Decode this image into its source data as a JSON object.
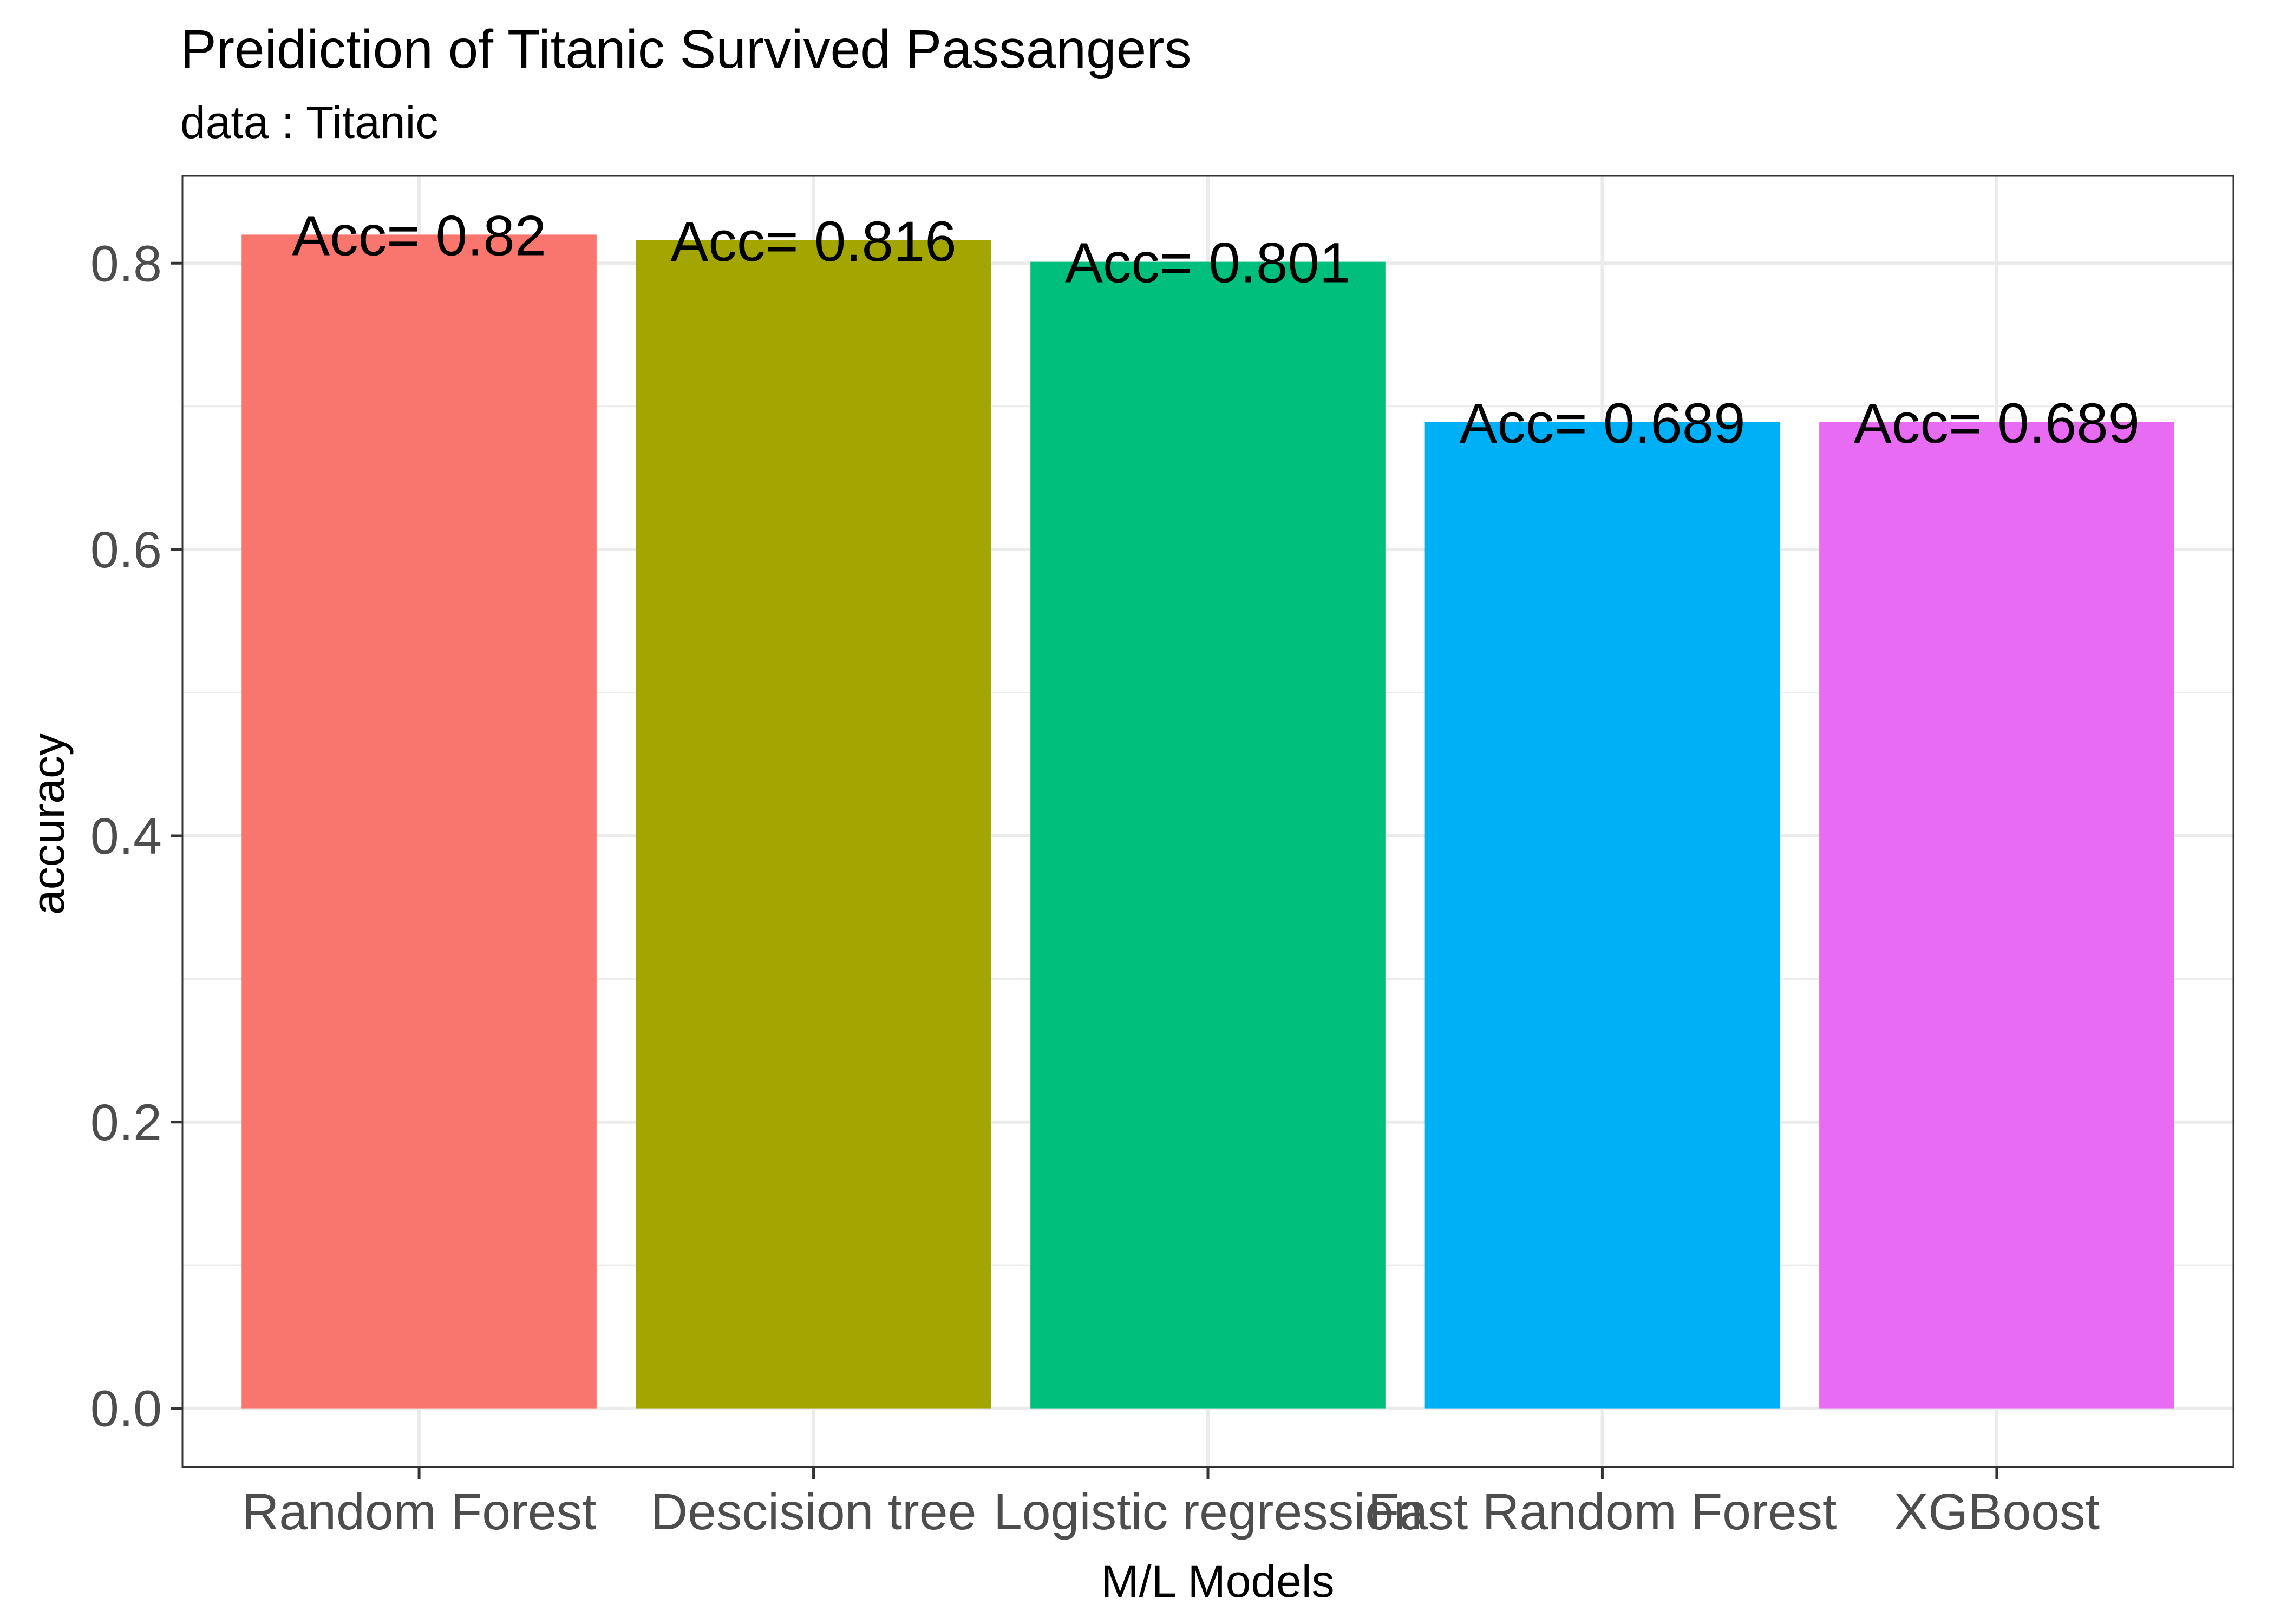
{
  "chart_data": {
    "type": "bar",
    "title": "Preidiction of Titanic Survived Passangers",
    "subtitle": "data : Titanic",
    "xlabel": "M/L Models",
    "ylabel": "accuracy",
    "categories": [
      "Random Forest",
      "Descision tree",
      "Logistic regression",
      "Fast Random Forest",
      "XGBoost"
    ],
    "values": [
      0.82,
      0.816,
      0.801,
      0.689,
      0.689
    ],
    "data_labels": [
      "Acc= 0.82",
      "Acc= 0.816",
      "Acc= 0.801",
      "Acc= 0.689",
      "Acc= 0.689"
    ],
    "colors": [
      "#F8766D",
      "#A3A500",
      "#00BF7D",
      "#00B0F6",
      "#E76BF3"
    ],
    "ylim": [
      -0.041,
      0.861
    ],
    "yticks": [
      0.0,
      0.2,
      0.4,
      0.6,
      0.8
    ],
    "ytick_labels": [
      "0.0",
      "0.2",
      "0.4",
      "0.6",
      "0.8"
    ],
    "grid": true,
    "legend": "none",
    "grid_color": "#EBEBEB",
    "panel_border_color": "#333333"
  }
}
